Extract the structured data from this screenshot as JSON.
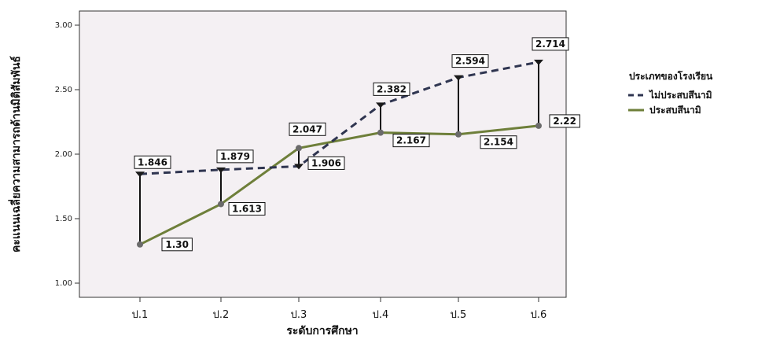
{
  "chart_data": {
    "type": "line",
    "categories": [
      "ป.1",
      "ป.2",
      "ป.3",
      "ป.4",
      "ป.5",
      "ป.6"
    ],
    "xlabel": "ระดับการศึกษา",
    "ylabel": "คะแนนเฉลี่ยความสามารถด้านมิติสัมพันธ์",
    "ylim": [
      1.0,
      3.0
    ],
    "yticks": [
      "1.00",
      "1.50",
      "2.00",
      "2.50",
      "3.00"
    ],
    "grid": false,
    "legend_title": "ประเภทของโรงเรียน",
    "legend_position": "right",
    "series": [
      {
        "name": "ไม่ประสบสึนามิ",
        "style": "dashed",
        "color": "#2f3550",
        "values": [
          1.846,
          1.879,
          1.906,
          2.382,
          2.594,
          2.714
        ],
        "labels": [
          "1.846",
          "1.879",
          "1.906",
          "2.382",
          "2.594",
          "2.714"
        ]
      },
      {
        "name": "ประสบสึนามิ",
        "style": "solid",
        "color": "#6e7f3a",
        "values": [
          1.3,
          1.613,
          2.047,
          2.167,
          2.154,
          2.22
        ],
        "labels": [
          "1.30",
          "1.613",
          "2.047",
          "2.167",
          "2.154",
          "2.22"
        ]
      }
    ]
  }
}
